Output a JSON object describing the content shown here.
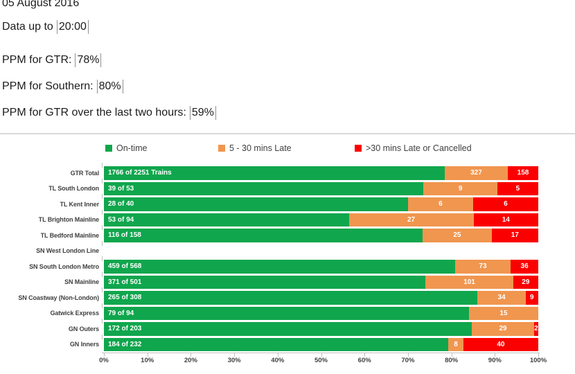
{
  "header": {
    "date": "05 August 2016",
    "lines": [
      {
        "label": "Data up to",
        "value": "20:00"
      },
      {
        "label": "PPM for GTR:",
        "value": "78%"
      },
      {
        "label": "PPM for Southern:",
        "value": "80%"
      },
      {
        "label": "PPM for GTR over the last two hours:",
        "value": "59%"
      }
    ]
  },
  "chart_data": {
    "type": "bar",
    "orientation": "horizontal",
    "stacked": true,
    "title": "",
    "xlabel": "",
    "ylabel": "",
    "xlim": [
      0,
      100
    ],
    "x_ticks": [
      "0%",
      "10%",
      "20%",
      "30%",
      "40%",
      "50%",
      "60%",
      "70%",
      "80%",
      "90%",
      "100%"
    ],
    "legend_position": "top",
    "categories": [
      "GTR Total",
      "TL South London",
      "TL Kent Inner",
      "TL Brighton Mainline",
      "TL Bedford Mainline",
      "SN West London Line",
      "SN South London Metro",
      "SN Mainline",
      "SN Coastway (Non-London)",
      "Gatwick Express",
      "GN Outers",
      "GN Inners"
    ],
    "totals": [
      2251,
      53,
      40,
      94,
      158,
      0,
      568,
      501,
      308,
      94,
      203,
      232
    ],
    "series": [
      {
        "name": "On-time",
        "color": "#10A64D",
        "values": [
          1766,
          39,
          28,
          53,
          116,
          0,
          459,
          371,
          265,
          79,
          172,
          184
        ],
        "bar_labels": [
          "1766 of 2251 Trains",
          "39 of 53",
          "28 of 40",
          "53 of 94",
          "116 of 158",
          "",
          "459 of 568",
          "371 of 501",
          "265 of 308",
          "79 of 94",
          "172 of 203",
          "184 of 232"
        ]
      },
      {
        "name": "5 - 30 mins Late",
        "color": "#F0964F",
        "values": [
          327,
          9,
          6,
          27,
          25,
          0,
          73,
          101,
          34,
          15,
          29,
          8
        ]
      },
      {
        "name": ">30 mins Late or Cancelled",
        "color": "#FB0000",
        "values": [
          158,
          5,
          6,
          14,
          17,
          0,
          36,
          29,
          9,
          0,
          2,
          40
        ]
      }
    ]
  }
}
